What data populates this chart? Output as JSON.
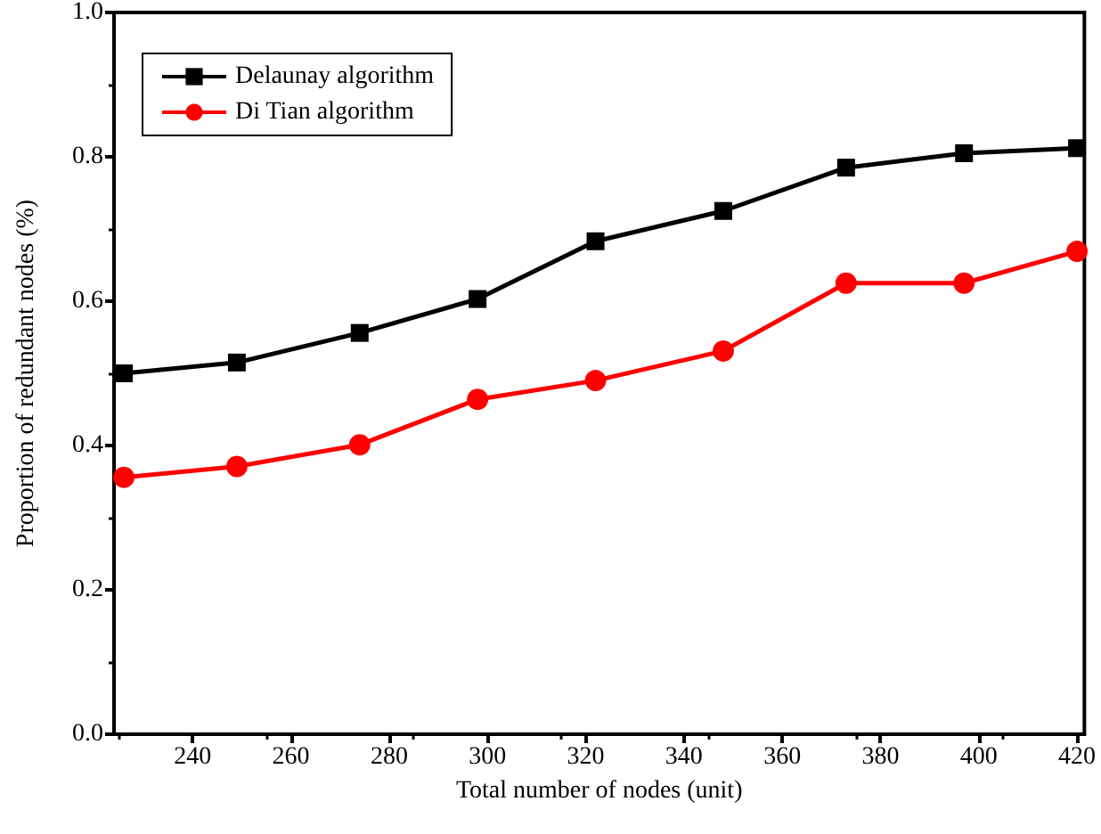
{
  "chart_data": {
    "type": "line",
    "xlabel": "Total number of nodes (unit)",
    "ylabel": "Proportion of redundant nodes (%)",
    "xlim": [
      224,
      421.5
    ],
    "xticks": [
      240,
      260,
      280,
      300,
      320,
      340,
      360,
      380,
      400,
      420
    ],
    "ylim": [
      0,
      1
    ],
    "yticks": [
      {
        "value": 0,
        "label": "0.0"
      },
      {
        "value": 0.2,
        "label": "0.2"
      },
      {
        "value": 0.4,
        "label": "0.4"
      },
      {
        "value": 0.6,
        "label": "0.6"
      },
      {
        "value": 0.8,
        "label": "0.8"
      },
      {
        "value": 1,
        "label": "1.0"
      }
    ],
    "x": [
      226,
      249,
      274,
      298,
      322,
      348,
      373,
      397,
      420
    ],
    "series": [
      {
        "name": "Delaunay algorithm",
        "color": "#000000",
        "marker": "square",
        "values": [
          0.5,
          0.515,
          0.556,
          0.603,
          0.683,
          0.725,
          0.785,
          0.805,
          0.812
        ]
      },
      {
        "name": "Di Tian algorithm",
        "color": "#ff0000",
        "marker": "circle",
        "values": [
          0.356,
          0.371,
          0.401,
          0.464,
          0.49,
          0.531,
          0.625,
          0.625,
          0.669
        ]
      }
    ],
    "legend": "top left",
    "grid": false,
    "line_style": "solid"
  }
}
